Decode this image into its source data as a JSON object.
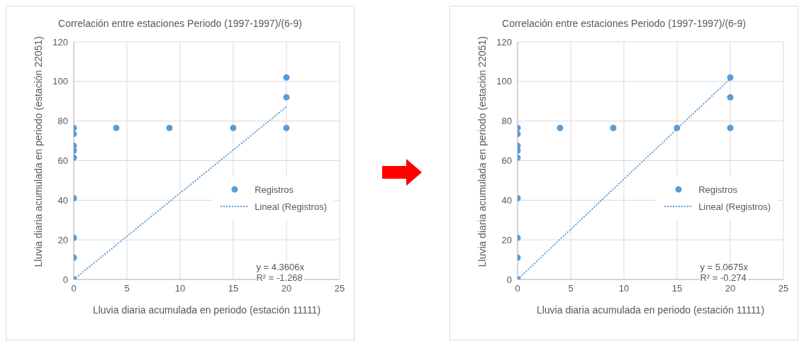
{
  "chart_data": [
    {
      "type": "scatter",
      "title": "Correlación entre estaciones Periodo (1997-1997)/(6-9)",
      "xlabel": "Lluvia diaria acumulada en periodo (estación 11111)",
      "ylabel": "Lluvia diaria acumulada en periodo (estación 22051)",
      "xlim": [
        0,
        25
      ],
      "xticks": [
        0,
        5,
        10,
        15,
        20,
        25
      ],
      "ylim": [
        0,
        120
      ],
      "yticks": [
        0,
        20,
        40,
        60,
        80,
        100,
        120
      ],
      "grid": true,
      "legend": "right",
      "annotations": [
        "y = 4.3606x",
        "R² = -1.268"
      ],
      "series": [
        {
          "name": "Registros",
          "type": "scatter",
          "marker": "circle",
          "color": "#5b9bd5",
          "x": [
            0,
            0,
            0,
            0,
            0,
            0,
            0,
            0,
            0,
            4,
            9,
            15,
            20,
            20,
            20
          ],
          "values": [
            76.5,
            73.5,
            67.5,
            65,
            61.5,
            41,
            21,
            11,
            0,
            76.5,
            76.5,
            76.5,
            102,
            92,
            76.5
          ]
        },
        {
          "name": "Lineal (Registros)",
          "type": "line",
          "marker": "none",
          "line_style": "dotted",
          "color": "#5b9bd5",
          "x": [
            0,
            20
          ],
          "values": [
            0,
            87.2
          ]
        }
      ]
    },
    {
      "type": "scatter",
      "title": "Correlación entre estaciones Periodo (1997-1997)/(6-9)",
      "xlabel": "Lluvia diaria acumulada en periodo (estación 11111)",
      "ylabel": "Lluvia diaria acumulada en periodo (estación 22051)",
      "xlim": [
        0,
        25
      ],
      "xticks": [
        0,
        5,
        10,
        15,
        20,
        25
      ],
      "ylim": [
        0,
        120
      ],
      "yticks": [
        0,
        20,
        40,
        60,
        80,
        100,
        120
      ],
      "grid": true,
      "legend": "right",
      "annotations": [
        "y = 5.0675x",
        "R² = -0.274"
      ],
      "series": [
        {
          "name": "Registros",
          "type": "scatter",
          "marker": "circle",
          "color": "#5b9bd5",
          "x": [
            0,
            0,
            0,
            0,
            0,
            0,
            0,
            0,
            0,
            4,
            9,
            15,
            20,
            20,
            20
          ],
          "values": [
            76.5,
            73.5,
            67.5,
            65,
            61.5,
            41,
            21,
            11,
            0,
            76.5,
            76.5,
            76.5,
            102,
            92,
            76.5
          ]
        },
        {
          "name": "Lineal (Registros)",
          "type": "line",
          "marker": "none",
          "line_style": "dotted",
          "color": "#5b9bd5",
          "x": [
            0,
            20
          ],
          "values": [
            0,
            101.4
          ]
        }
      ]
    }
  ]
}
